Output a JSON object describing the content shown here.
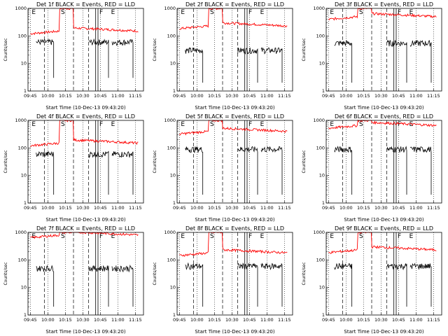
{
  "chart_data": {
    "type": "line",
    "ylabel": "Counts/sec",
    "xlabel": "Start Time (10-Dec-13 09:43:20)",
    "x_ticks": [
      "09:45",
      "10:00",
      "10:15",
      "10:30",
      "10:45",
      "11:00",
      "11:15"
    ],
    "y_ticks": [
      "1",
      "10",
      "100",
      "1000"
    ],
    "yscale": "log",
    "ylim": [
      1,
      1000
    ],
    "colors": {
      "events": "#000000",
      "lld": "#ff0000"
    },
    "markers": [
      {
        "label": "E",
        "time": "09:45"
      },
      {
        "label": "S",
        "time": "10:10"
      },
      {
        "label": "F",
        "time": "10:43"
      },
      {
        "label": "E",
        "time": "10:53"
      }
    ],
    "panels": [
      {
        "title": "Det 1f BLACK = Events, RED = LLD",
        "lld_level": 150,
        "lld_peak": 1000,
        "events_level": 60,
        "events_dip": 3
      },
      {
        "title": "Det 2f BLACK = Events, RED = LLD",
        "lld_level": 230,
        "lld_peak": 1000,
        "events_level": 30,
        "events_dip": 2
      },
      {
        "title": "Det 3f BLACK = Events, RED = LLD",
        "lld_level": 500,
        "lld_peak": 1000,
        "events_level": 55,
        "events_dip": 2
      },
      {
        "title": "Det 4f BLACK = Events, RED = LLD",
        "lld_level": 150,
        "lld_peak": 1000,
        "events_level": 60,
        "events_dip": 2
      },
      {
        "title": "Det 5f BLACK = Events, RED = LLD",
        "lld_level": 400,
        "lld_peak": 1000,
        "events_level": 90,
        "events_dip": 2
      },
      {
        "title": "Det 6f BLACK = Events, RED = LLD",
        "lld_level": 650,
        "lld_peak": 1000,
        "events_level": 90,
        "events_dip": 2
      },
      {
        "title": "Det 7f BLACK = Events, RED = LLD",
        "lld_level": 800,
        "lld_peak": 1000,
        "events_level": 50,
        "events_dip": 2
      },
      {
        "title": "Det 8f BLACK = Events, RED = LLD",
        "lld_level": 180,
        "lld_peak": 1000,
        "events_level": 60,
        "events_dip": 2
      },
      {
        "title": "Det 9f BLACK = Events, RED = LLD",
        "lld_level": 230,
        "lld_peak": 1000,
        "events_level": 60,
        "events_dip": 2
      }
    ]
  }
}
